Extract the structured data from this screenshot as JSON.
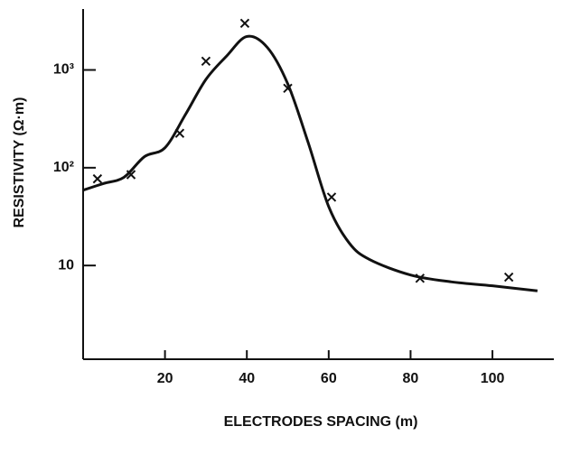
{
  "chart_data": {
    "type": "scatter",
    "x_label": "ELECTRODES SPACING (m)",
    "y_label": "RESISTIVITY (Ω·m)",
    "xlim": [
      0,
      115
    ],
    "xticks": [
      20,
      40,
      60,
      80,
      100
    ],
    "ylim": [
      1.1,
      4200
    ],
    "y_scale": "log",
    "yticks": [
      {
        "value": 10,
        "label": "10"
      },
      {
        "value": 100,
        "label": "10²"
      },
      {
        "value": 1000,
        "label": "10³"
      }
    ],
    "grid": false,
    "color": "#111111",
    "series": [
      {
        "mode": "markers",
        "marker": "x",
        "x": [
          3.5,
          11.7,
          23.6,
          30,
          39.5,
          50,
          60.7,
          82.3,
          104
        ],
        "values": [
          77,
          85,
          225,
          1230,
          3000,
          650,
          50,
          7.4,
          7.6
        ]
      },
      {
        "mode": "line",
        "x": [
          0,
          5,
          10,
          15,
          20,
          25,
          30,
          35,
          40,
          45,
          50,
          55,
          60,
          65,
          70,
          80,
          90,
          100,
          111
        ],
        "values": [
          59,
          69,
          80,
          130,
          160,
          350,
          800,
          1380,
          2200,
          1700,
          720,
          180,
          40,
          17,
          11.5,
          8,
          6.8,
          6.2,
          5.5
        ]
      }
    ]
  }
}
